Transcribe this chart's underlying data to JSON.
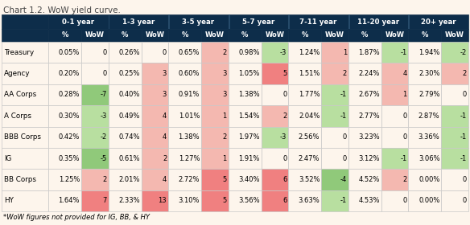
{
  "title": "Chart 1.2. WoW yield curve.",
  "footnote": "*WoW figures not provided for IG, BB, & HY",
  "col_groups": [
    "0-1 year",
    "1-3 year",
    "3-5 year",
    "5-7 year",
    "7-11 year",
    "11-20 year",
    "20+ year"
  ],
  "row_labels": [
    "Treasury",
    "Agency",
    "AA Corps",
    "A Corps",
    "BBB Corps",
    "IG",
    "BB Corps",
    "HY"
  ],
  "data": [
    [
      "0.05%",
      0,
      "0.26%",
      0,
      "0.65%",
      2,
      "0.98%",
      -3,
      "1.24%",
      1,
      "1.87%",
      -1,
      "1.94%",
      -2
    ],
    [
      "0.20%",
      0,
      "0.25%",
      3,
      "0.60%",
      3,
      "1.05%",
      5,
      "1.51%",
      2,
      "2.24%",
      4,
      "2.30%",
      2
    ],
    [
      "0.28%",
      -7,
      "0.40%",
      3,
      "0.91%",
      3,
      "1.38%",
      0,
      "1.77%",
      -1,
      "2.67%",
      1,
      "2.79%",
      0
    ],
    [
      "0.30%",
      -3,
      "0.49%",
      4,
      "1.01%",
      1,
      "1.54%",
      2,
      "2.04%",
      -1,
      "2.77%",
      0,
      "2.87%",
      -1
    ],
    [
      "0.42%",
      -2,
      "0.74%",
      4,
      "1.38%",
      2,
      "1.97%",
      -3,
      "2.56%",
      0,
      "3.23%",
      0,
      "3.36%",
      -1
    ],
    [
      "0.35%",
      -5,
      "0.61%",
      2,
      "1.27%",
      1,
      "1.91%",
      0,
      "2.47%",
      0,
      "3.12%",
      -1,
      "3.06%",
      -1
    ],
    [
      "1.25%",
      2,
      "2.01%",
      4,
      "2.72%",
      5,
      "3.40%",
      6,
      "3.52%",
      -4,
      "4.52%",
      2,
      "0.00%",
      0
    ],
    [
      "1.64%",
      7,
      "2.33%",
      13,
      "3.10%",
      5,
      "3.56%",
      6,
      "3.63%",
      -1,
      "4.53%",
      0,
      "0.00%",
      0
    ]
  ],
  "header_bg": "#0d2d4a",
  "header_fg": "#ffffff",
  "cell_bg": "#fdf5ec",
  "color_pos_strong": "#f08080",
  "color_pos_mild": "#f4b8b0",
  "color_neg_strong": "#90c97a",
  "color_neg_mild": "#b8dfa0",
  "title_color": "#555555",
  "border_color": "#c8c8c8",
  "header_border": "#1a4060"
}
